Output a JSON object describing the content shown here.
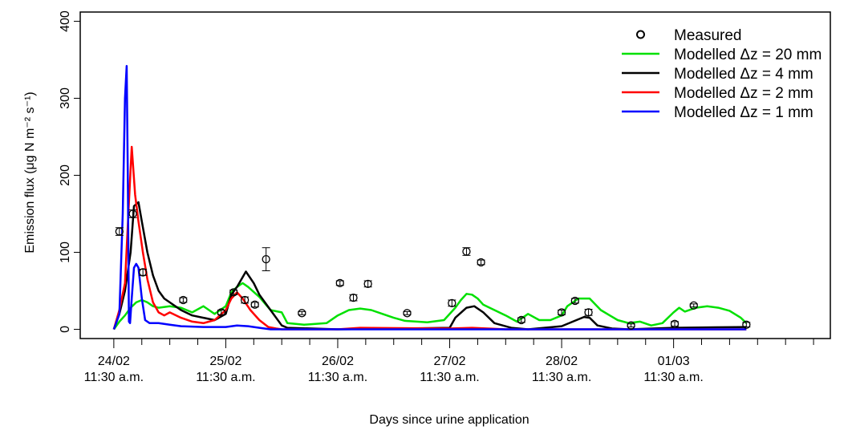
{
  "chart_data": {
    "type": "line",
    "x_unit": "days since urine application",
    "xlim": [
      -0.3,
      6.4
    ],
    "ylim": [
      -12,
      412
    ],
    "xticks": [
      {
        "x": 0,
        "label": "24/02",
        "sublabel": "11:30 a.m."
      },
      {
        "x": 1,
        "label": "25/02",
        "sublabel": "11:30 a.m."
      },
      {
        "x": 2,
        "label": "26/02",
        "sublabel": "11:30 a.m."
      },
      {
        "x": 3,
        "label": "27/02",
        "sublabel": "11:30 a.m."
      },
      {
        "x": 4,
        "label": "28/02",
        "sublabel": "11:30 a.m."
      },
      {
        "x": 5,
        "label": "01/03",
        "sublabel": "11:30 a.m."
      }
    ],
    "yticks": [
      "0",
      "100",
      "200",
      "300",
      "400"
    ],
    "ylabel": "Emission flux (μg N m⁻² s⁻¹)",
    "xlabel": "Days since urine application",
    "legend": [
      {
        "label": "Measured",
        "kind": "point",
        "color": "#000000"
      },
      {
        "label": "Modelled Δz = 20 mm",
        "kind": "line",
        "color": "#00e000"
      },
      {
        "label": "Modelled Δz = 4 mm",
        "kind": "line",
        "color": "#000000"
      },
      {
        "label": "Modelled Δz = 2 mm",
        "kind": "line",
        "color": "#ff0000"
      },
      {
        "label": "Modelled Δz = 1 mm",
        "kind": "line",
        "color": "#0000ff"
      }
    ],
    "legend_position": "top-right",
    "grid": false,
    "measured": [
      {
        "x": 0.05,
        "y": 127,
        "err": 5
      },
      {
        "x": 0.17,
        "y": 150,
        "err": 5
      },
      {
        "x": 0.26,
        "y": 74,
        "err": 4
      },
      {
        "x": 0.62,
        "y": 38,
        "err": 3
      },
      {
        "x": 0.96,
        "y": 22,
        "err": 3
      },
      {
        "x": 1.07,
        "y": 48,
        "err": 3
      },
      {
        "x": 1.17,
        "y": 38,
        "err": 4
      },
      {
        "x": 1.26,
        "y": 32,
        "err": 3
      },
      {
        "x": 1.36,
        "y": 91,
        "err": 15
      },
      {
        "x": 1.68,
        "y": 21,
        "err": 2
      },
      {
        "x": 2.02,
        "y": 60,
        "err": 3
      },
      {
        "x": 2.14,
        "y": 41,
        "err": 4
      },
      {
        "x": 2.27,
        "y": 59,
        "err": 4
      },
      {
        "x": 2.62,
        "y": 21,
        "err": 2
      },
      {
        "x": 3.02,
        "y": 34,
        "err": 4
      },
      {
        "x": 3.15,
        "y": 101,
        "err": 5
      },
      {
        "x": 3.28,
        "y": 87,
        "err": 3
      },
      {
        "x": 3.64,
        "y": 12,
        "err": 3
      },
      {
        "x": 4.0,
        "y": 22,
        "err": 3
      },
      {
        "x": 4.12,
        "y": 37,
        "err": 3
      },
      {
        "x": 4.24,
        "y": 22,
        "err": 4
      },
      {
        "x": 4.62,
        "y": 5,
        "err": 2
      },
      {
        "x": 5.01,
        "y": 7,
        "err": 3
      },
      {
        "x": 5.18,
        "y": 31,
        "err": 2
      },
      {
        "x": 5.65,
        "y": 6,
        "err": 3
      }
    ],
    "series": [
      {
        "name": "Modelled Δz = 20 mm",
        "color": "#00e000",
        "x": [
          0.0,
          0.05,
          0.1,
          0.15,
          0.2,
          0.25,
          0.3,
          0.35,
          0.4,
          0.5,
          0.6,
          0.7,
          0.8,
          0.85,
          0.9,
          1.0,
          1.05,
          1.1,
          1.15,
          1.2,
          1.3,
          1.4,
          1.5,
          1.55,
          1.7,
          1.9,
          2.0,
          2.1,
          2.2,
          2.3,
          2.4,
          2.5,
          2.6,
          2.8,
          2.95,
          3.05,
          3.1,
          3.15,
          3.2,
          3.25,
          3.3,
          3.4,
          3.5,
          3.6,
          3.7,
          3.8,
          3.9,
          4.0,
          4.05,
          4.15,
          4.25,
          4.35,
          4.5,
          4.6,
          4.7,
          4.8,
          4.9,
          5.0,
          5.05,
          5.1,
          5.2,
          5.3,
          5.4,
          5.5,
          5.6,
          5.65
        ],
        "y": [
          0,
          10,
          18,
          28,
          35,
          38,
          35,
          30,
          28,
          30,
          28,
          22,
          30,
          25,
          20,
          30,
          48,
          55,
          60,
          55,
          42,
          25,
          22,
          8,
          6,
          8,
          18,
          25,
          27,
          25,
          20,
          15,
          11,
          9,
          12,
          28,
          38,
          46,
          45,
          40,
          32,
          25,
          18,
          10,
          20,
          12,
          12,
          18,
          30,
          40,
          40,
          25,
          12,
          8,
          10,
          5,
          8,
          22,
          28,
          23,
          28,
          30,
          28,
          24,
          15,
          8
        ]
      },
      {
        "name": "Modelled Δz = 4 mm",
        "color": "#000000",
        "x": [
          0.0,
          0.05,
          0.1,
          0.15,
          0.18,
          0.22,
          0.25,
          0.3,
          0.35,
          0.4,
          0.45,
          0.5,
          0.6,
          0.7,
          0.8,
          0.9,
          1.0,
          1.05,
          1.1,
          1.18,
          1.25,
          1.3,
          1.4,
          1.5,
          1.55,
          2.0,
          3.0,
          3.05,
          3.15,
          3.22,
          3.3,
          3.4,
          3.55,
          3.7,
          4.0,
          4.1,
          4.2,
          4.25,
          4.32,
          4.45,
          4.6,
          5.0,
          5.65
        ],
        "y": [
          0,
          20,
          50,
          100,
          160,
          165,
          140,
          100,
          70,
          50,
          40,
          35,
          25,
          18,
          15,
          12,
          20,
          45,
          55,
          75,
          60,
          45,
          25,
          5,
          2,
          0,
          2,
          15,
          28,
          30,
          22,
          8,
          2,
          0,
          4,
          10,
          16,
          15,
          5,
          1,
          0,
          2,
          3
        ]
      },
      {
        "name": "Modelled Δz = 2 mm",
        "color": "#ff0000",
        "x": [
          0.0,
          0.05,
          0.1,
          0.13,
          0.16,
          0.19,
          0.22,
          0.26,
          0.3,
          0.35,
          0.4,
          0.45,
          0.5,
          0.6,
          0.7,
          0.8,
          0.9,
          1.0,
          1.05,
          1.1,
          1.15,
          1.22,
          1.3,
          1.38,
          1.45,
          1.5,
          2.0,
          2.2,
          3.0,
          3.2,
          3.5,
          5.65
        ],
        "y": [
          0,
          25,
          60,
          150,
          237,
          175,
          140,
          100,
          65,
          35,
          22,
          18,
          22,
          15,
          10,
          8,
          12,
          25,
          40,
          48,
          40,
          25,
          12,
          3,
          1,
          0,
          0,
          2,
          1,
          2,
          0,
          0
        ]
      },
      {
        "name": "Modelled Δz = 1 mm",
        "color": "#0000ff",
        "x": [
          0.0,
          0.05,
          0.08,
          0.1,
          0.115,
          0.125,
          0.135,
          0.145,
          0.16,
          0.18,
          0.2,
          0.22,
          0.25,
          0.28,
          0.32,
          0.4,
          0.5,
          0.6,
          0.8,
          1.0,
          1.1,
          1.2,
          1.3,
          1.4,
          1.5,
          2.0,
          3.0,
          5.65
        ],
        "y": [
          0,
          20,
          150,
          300,
          342,
          200,
          10,
          8,
          40,
          80,
          85,
          80,
          40,
          12,
          8,
          8,
          6,
          4,
          3,
          3,
          5,
          4,
          2,
          0,
          0,
          0,
          0,
          0
        ]
      }
    ]
  }
}
